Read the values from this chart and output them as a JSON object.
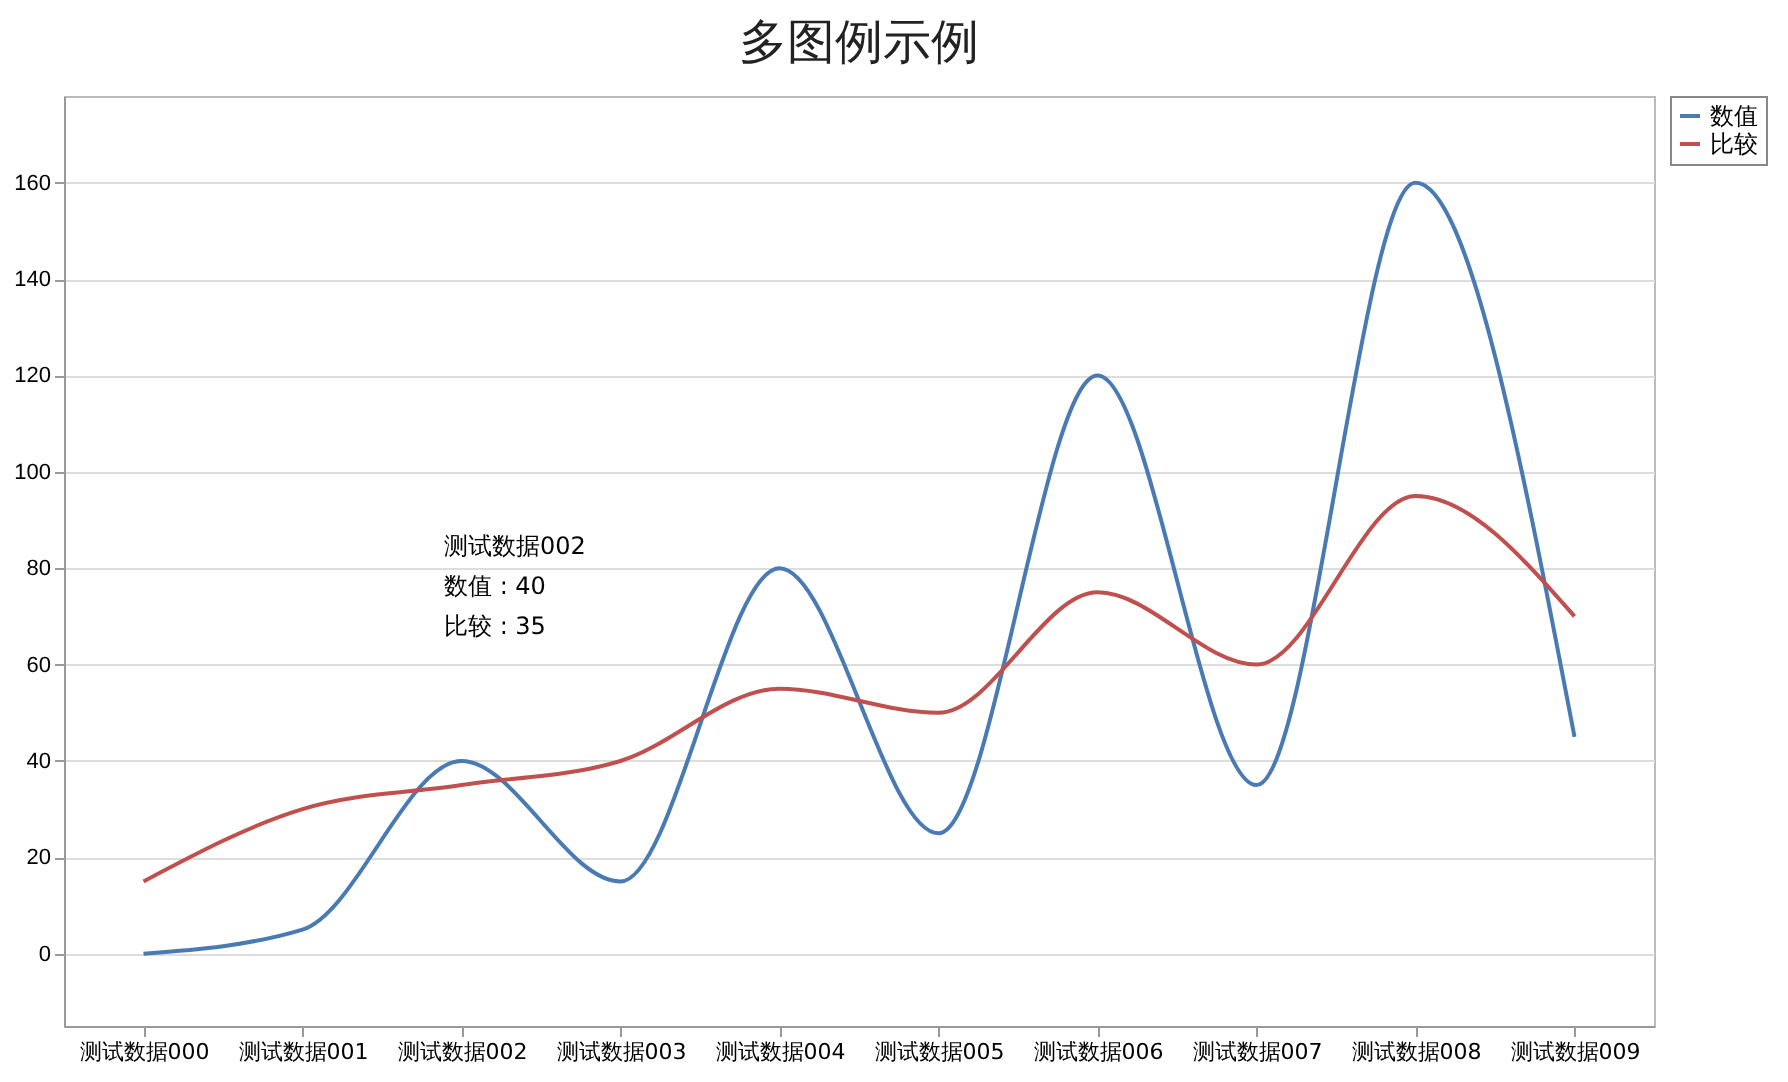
{
  "chart_data": {
    "type": "line",
    "title": "多图例示例",
    "categories": [
      "测试数据000",
      "测试数据001",
      "测试数据002",
      "测试数据003",
      "测试数据004",
      "测试数据005",
      "测试数据006",
      "测试数据007",
      "测试数据008",
      "测试数据009"
    ],
    "series": [
      {
        "name": "数值",
        "color": "#4a7ab4",
        "values": [
          0,
          5,
          40,
          15,
          80,
          25,
          120,
          35,
          160,
          45
        ]
      },
      {
        "name": "比较",
        "color": "#c0504d",
        "values": [
          15,
          30,
          35,
          40,
          55,
          50,
          75,
          60,
          95,
          70
        ]
      }
    ],
    "ylim": [
      -15,
      178
    ],
    "yticks": [
      0,
      20,
      40,
      60,
      80,
      100,
      120,
      140,
      160
    ],
    "grid": "y",
    "legend": "top right",
    "marker": "none",
    "line_style": "solid",
    "annotations": [
      "测试数据002",
      "数值 : 40",
      "比较 : 35"
    ]
  }
}
